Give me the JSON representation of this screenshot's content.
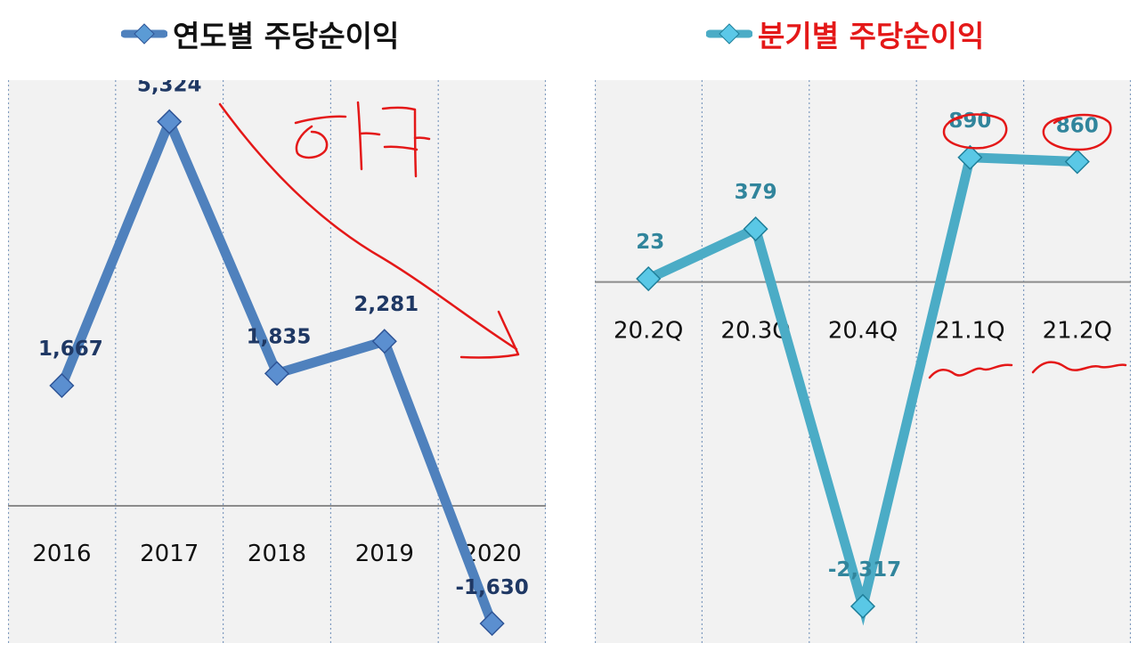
{
  "legend_left": {
    "label": "연도별 주당순이익",
    "color": "#4f81bd"
  },
  "legend_right": {
    "label": "분기별 주당순이익",
    "color": "#4bacc6",
    "text_color": "#e41818"
  },
  "chart_data": [
    {
      "type": "line",
      "categories": [
        "2016",
        "2017",
        "2018",
        "2019",
        "2020"
      ],
      "series": [
        {
          "name": "연도별 주당순이익",
          "values": [
            1667,
            5324,
            1835,
            2281,
            -1630
          ]
        }
      ],
      "data_labels": [
        "1,667",
        "5,324",
        "1,835",
        "2,281",
        "-1,630"
      ],
      "ylim": [
        -1900,
        5900
      ],
      "line_color": "#4f81bd",
      "label_color": "#1f3864",
      "grid": "vertical dotted"
    },
    {
      "type": "line",
      "categories": [
        "20.2Q",
        "20.3Q",
        "20.4Q",
        "21.1Q",
        "21.2Q"
      ],
      "series": [
        {
          "name": "분기별 주당순이익",
          "values": [
            23,
            379,
            -2317,
            890,
            860
          ]
        }
      ],
      "data_labels": [
        "23",
        "379",
        "-2,317",
        "890",
        "860"
      ],
      "ylim": [
        -2579,
        1442
      ],
      "line_color": "#4bacc6",
      "label_color": "#31859c",
      "grid": "vertical dotted"
    }
  ],
  "annotations": {
    "handwriting": "하락",
    "color": "#e41818"
  }
}
